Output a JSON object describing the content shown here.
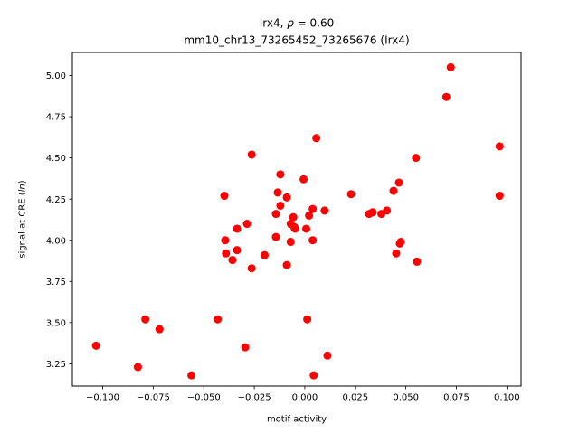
{
  "chart_data": {
    "type": "scatter",
    "title_line1_prefix": "Irx4, ",
    "title_rho_symbol": "ρ",
    "title_rho_value": " = 0.60",
    "title_line2": "mm10_chr13_73265452_73265676 (Irx4)",
    "xlabel": "motif activity",
    "ylabel_prefix": "signal at CRE (",
    "ylabel_italic": "ln",
    "ylabel_suffix": ")",
    "xlim": [
      -0.115,
      0.107
    ],
    "ylim": [
      3.115,
      5.14
    ],
    "xticks": [
      -0.1,
      -0.075,
      -0.05,
      -0.025,
      0.0,
      0.025,
      0.05,
      0.075,
      0.1
    ],
    "xtick_labels": [
      "−0.100",
      "−0.075",
      "−0.050",
      "−0.025",
      "0.000",
      "0.025",
      "0.050",
      "0.075",
      "0.100"
    ],
    "yticks": [
      3.25,
      3.5,
      3.75,
      4.0,
      4.25,
      4.5,
      4.75,
      5.0
    ],
    "ytick_labels": [
      "3.25",
      "3.50",
      "3.75",
      "4.00",
      "4.25",
      "4.50",
      "4.75",
      "5.00"
    ],
    "grid": false,
    "point_color": "#ff0000",
    "points": [
      {
        "x": -0.1033,
        "y": 3.36
      },
      {
        "x": -0.0826,
        "y": 3.23
      },
      {
        "x": -0.0789,
        "y": 3.52
      },
      {
        "x": -0.0719,
        "y": 3.46
      },
      {
        "x": -0.0561,
        "y": 3.18
      },
      {
        "x": -0.0431,
        "y": 3.52
      },
      {
        "x": -0.0398,
        "y": 4.27
      },
      {
        "x": -0.0394,
        "y": 4.0
      },
      {
        "x": -0.039,
        "y": 3.92
      },
      {
        "x": -0.0358,
        "y": 3.88
      },
      {
        "x": -0.0335,
        "y": 4.07
      },
      {
        "x": -0.0335,
        "y": 3.94
      },
      {
        "x": -0.0295,
        "y": 3.35
      },
      {
        "x": -0.0286,
        "y": 4.1
      },
      {
        "x": -0.0263,
        "y": 4.52
      },
      {
        "x": -0.0263,
        "y": 3.83
      },
      {
        "x": -0.0199,
        "y": 3.91
      },
      {
        "x": -0.0143,
        "y": 4.16
      },
      {
        "x": -0.0143,
        "y": 4.02
      },
      {
        "x": -0.0134,
        "y": 4.29
      },
      {
        "x": -0.0121,
        "y": 4.21
      },
      {
        "x": -0.0121,
        "y": 4.4
      },
      {
        "x": -0.0089,
        "y": 4.26
      },
      {
        "x": -0.0089,
        "y": 3.85
      },
      {
        "x": -0.007,
        "y": 4.1
      },
      {
        "x": -0.007,
        "y": 3.99
      },
      {
        "x": -0.0057,
        "y": 4.14
      },
      {
        "x": -0.0052,
        "y": 4.08
      },
      {
        "x": -0.0048,
        "y": 4.07
      },
      {
        "x": -0.0006,
        "y": 4.37
      },
      {
        "x": 0.0007,
        "y": 4.07
      },
      {
        "x": 0.0012,
        "y": 3.52
      },
      {
        "x": 0.0021,
        "y": 4.15
      },
      {
        "x": 0.0039,
        "y": 4.19
      },
      {
        "x": 0.0039,
        "y": 4.0
      },
      {
        "x": 0.0044,
        "y": 3.18
      },
      {
        "x": 0.0057,
        "y": 4.62
      },
      {
        "x": 0.0098,
        "y": 4.18
      },
      {
        "x": 0.0112,
        "y": 3.3
      },
      {
        "x": 0.0229,
        "y": 4.28
      },
      {
        "x": 0.0318,
        "y": 4.16
      },
      {
        "x": 0.0336,
        "y": 4.17
      },
      {
        "x": 0.0379,
        "y": 4.16
      },
      {
        "x": 0.0406,
        "y": 4.18
      },
      {
        "x": 0.0439,
        "y": 4.3
      },
      {
        "x": 0.0452,
        "y": 3.92
      },
      {
        "x": 0.0466,
        "y": 4.35
      },
      {
        "x": 0.047,
        "y": 3.98
      },
      {
        "x": 0.0475,
        "y": 3.99
      },
      {
        "x": 0.055,
        "y": 4.5
      },
      {
        "x": 0.0555,
        "y": 3.87
      },
      {
        "x": 0.07,
        "y": 4.87
      },
      {
        "x": 0.0722,
        "y": 5.05
      },
      {
        "x": 0.0964,
        "y": 4.57
      },
      {
        "x": 0.0964,
        "y": 4.27
      }
    ]
  }
}
